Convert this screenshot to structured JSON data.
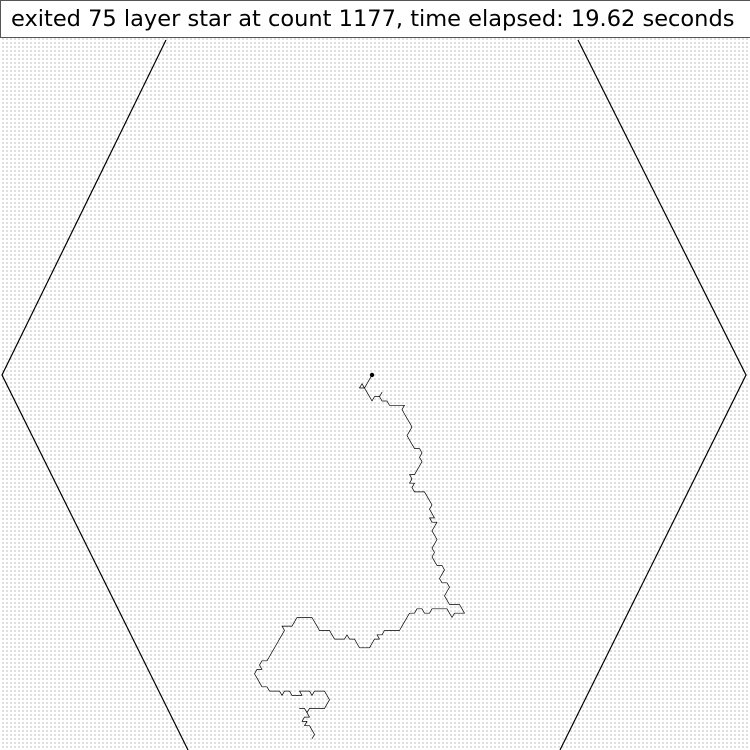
{
  "status": {
    "message": "exited 75 layer star at count 1177, time elapsed: 19.62 seconds"
  },
  "simulation": {
    "layers": 75,
    "count": 1177,
    "elapsed_seconds": 19.62
  },
  "colors": {
    "background": "#ffffff",
    "lattice_dot": "#8a8a8a",
    "outline": "#000000",
    "walk": "#000000"
  }
}
